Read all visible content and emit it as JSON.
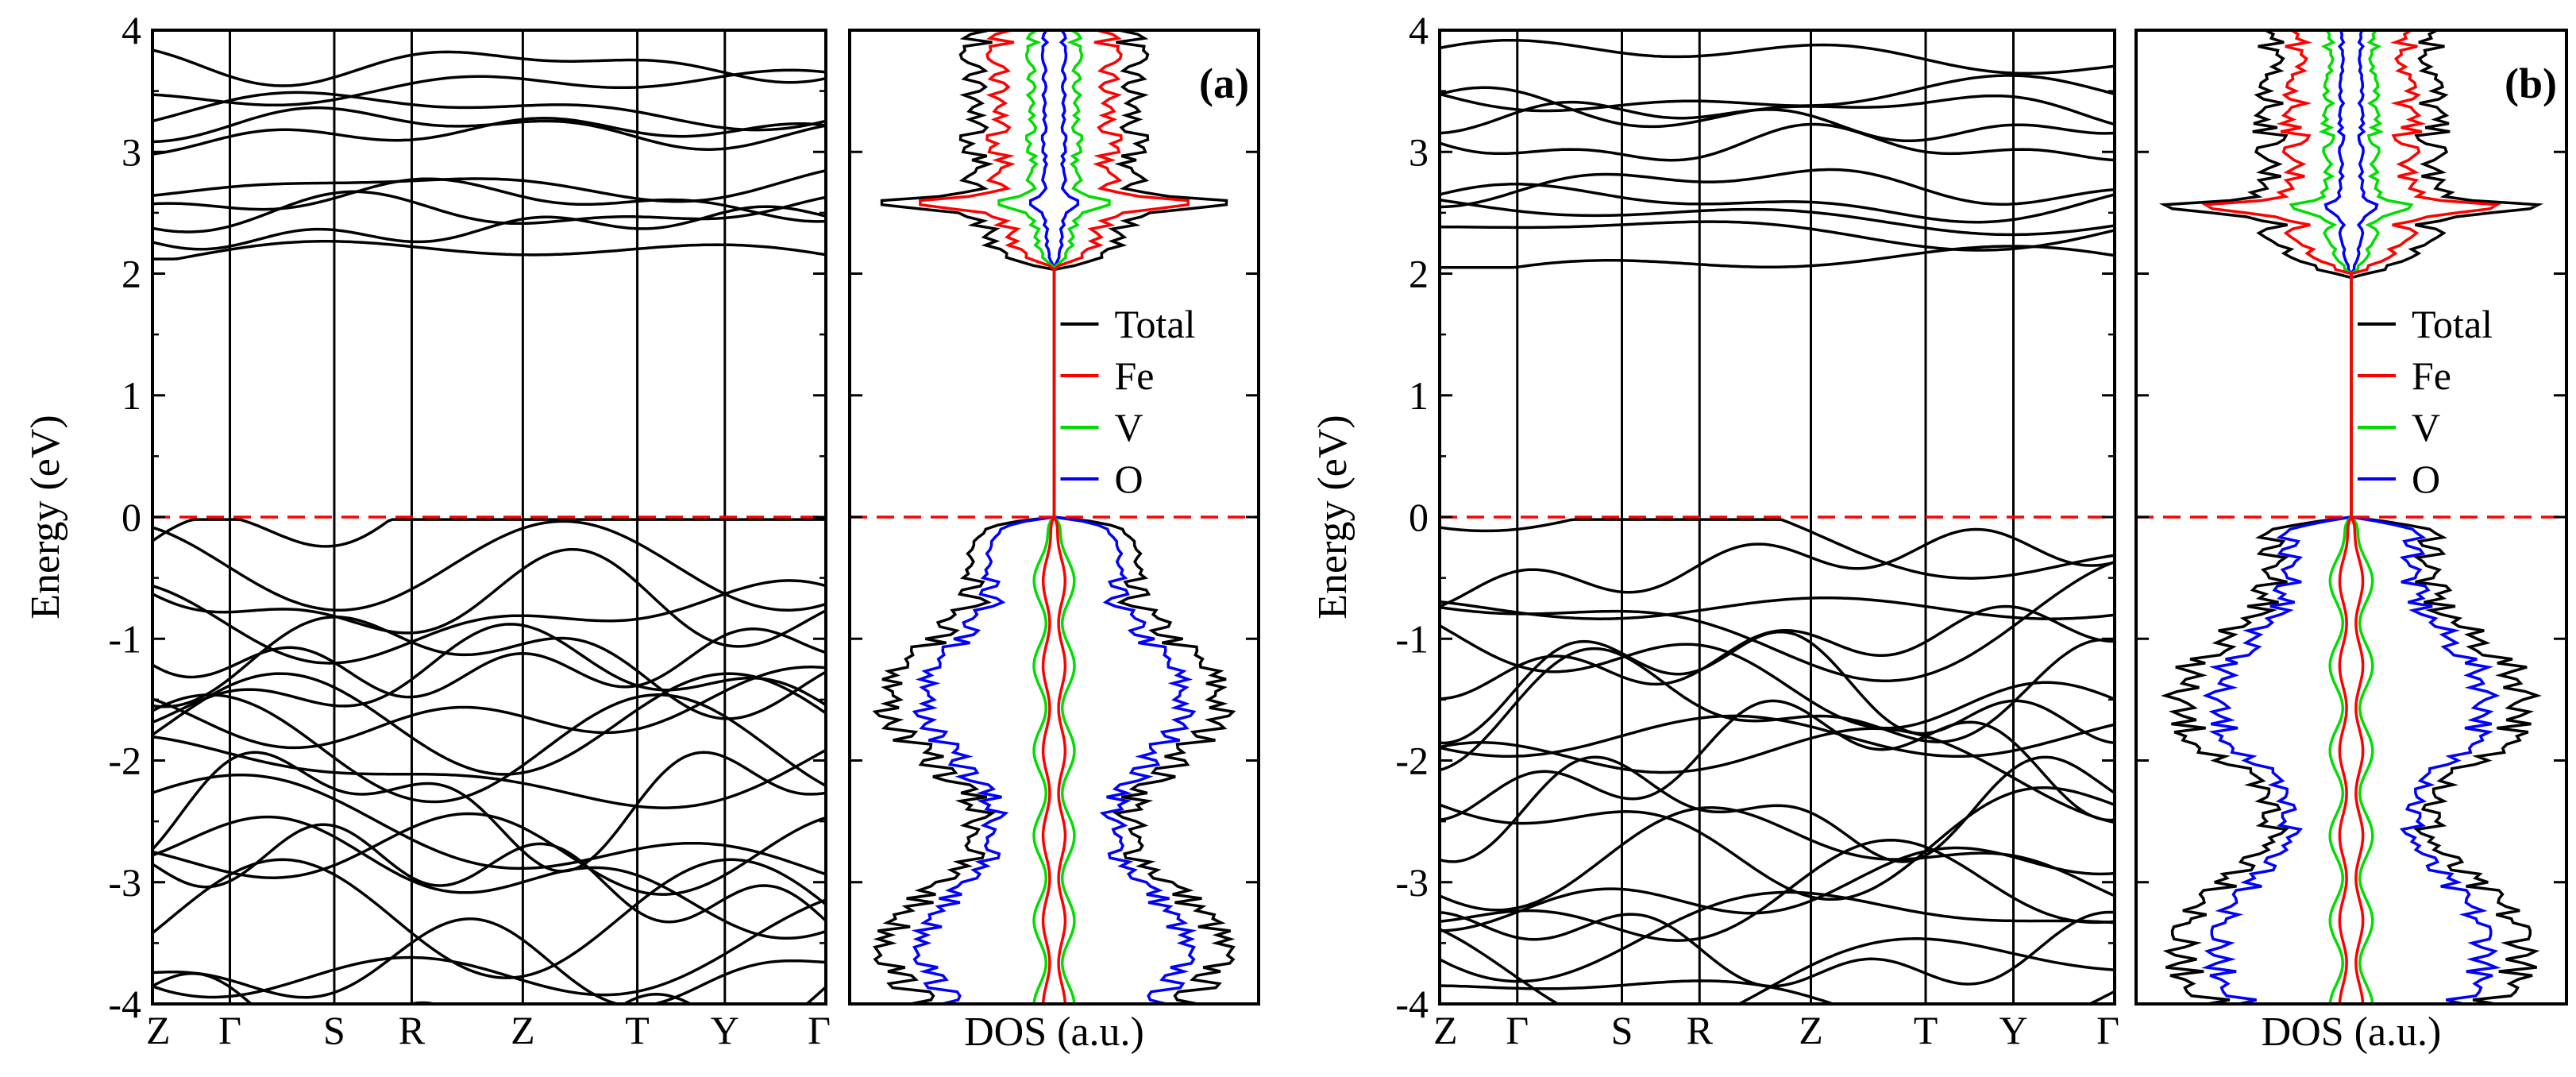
{
  "chart_data": [
    {
      "type": "line",
      "panel": "band-structure-a",
      "title": "",
      "ylabel": "Energy (eV)",
      "ylim": [
        -4,
        4
      ],
      "yticks": [
        "4",
        "3",
        "2",
        "1",
        "0",
        "-1",
        "-2",
        "-3",
        "-4"
      ],
      "kpoints": [
        "Z",
        "Γ",
        "S",
        "R",
        "Z",
        "T",
        "Y",
        "Γ"
      ],
      "fermi_level": 0,
      "conduction_bands_eV": [
        2.12,
        2.38,
        2.5,
        2.6,
        2.72,
        3.1,
        3.2,
        3.35,
        3.5,
        3.72
      ],
      "valence_bands_eV": [
        -0.05,
        -0.4,
        -0.7,
        -0.85,
        -1.05,
        -1.2,
        -1.35,
        -1.5,
        -1.7,
        -1.9,
        -2.1,
        -2.35,
        -2.6,
        -2.75,
        -2.95,
        -3.1,
        -3.3,
        -3.5,
        -3.7,
        -3.9
      ]
    },
    {
      "type": "line",
      "panel": "dos-a",
      "xlabel": "DOS (a.u.)",
      "label": "(a)",
      "ylim": [
        -4,
        4
      ],
      "legend": [
        "Total",
        "Fe",
        "V",
        "O"
      ],
      "series_colors": {
        "Total": "#000000",
        "Fe": "#ff0000",
        "V": "#00dd00",
        "O": "#0000ff"
      },
      "gap_eV": [
        0,
        2.05
      ],
      "peak_eV": 2.58
    },
    {
      "type": "line",
      "panel": "band-structure-b",
      "title": "",
      "ylabel": "Energy (eV)",
      "ylim": [
        -4,
        4
      ],
      "yticks": [
        "4",
        "3",
        "2",
        "1",
        "0",
        "-1",
        "-2",
        "-3",
        "-4"
      ],
      "kpoints": [
        "Z",
        "Γ",
        "S",
        "R",
        "Z",
        "T",
        "Y",
        "Γ"
      ],
      "fermi_level": 0,
      "conduction_bands_eV": [
        2.05,
        2.35,
        2.5,
        2.58,
        2.72,
        3.05,
        3.25,
        3.35,
        3.45,
        3.75
      ],
      "valence_bands_eV": [
        -0.2,
        -0.45,
        -0.75,
        -0.9,
        -1.1,
        -1.25,
        -1.4,
        -1.55,
        -1.8,
        -2.0,
        -2.2,
        -2.4,
        -2.6,
        -2.8,
        -3.0,
        -3.15,
        -3.35,
        -3.55,
        -3.75,
        -3.95
      ]
    },
    {
      "type": "line",
      "panel": "dos-b",
      "xlabel": "DOS (a.u.)",
      "label": "(b)",
      "ylim": [
        -4,
        4
      ],
      "legend": [
        "Total",
        "Fe",
        "V",
        "O"
      ],
      "series_colors": {
        "Total": "#000000",
        "Fe": "#ff0000",
        "V": "#00dd00",
        "O": "#0000ff"
      },
      "gap_eV": [
        0,
        2.0
      ],
      "peak_eV": 2.55
    }
  ]
}
